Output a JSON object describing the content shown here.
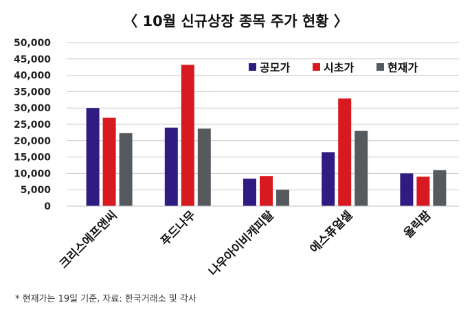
{
  "chart_data": {
    "type": "bar",
    "title": "〈 10월 신규상장 종목 주가 현황 〉",
    "categories": [
      "크리스에프앤씨",
      "푸드나무",
      "나우아이비캐피탈",
      "에스퓨얼셀",
      "올릭팜"
    ],
    "series": [
      {
        "name": "공모가",
        "color": "#2f1b82",
        "values": [
          30000,
          24000,
          8400,
          16500,
          10000
        ]
      },
      {
        "name": "시초가",
        "color": "#d71920",
        "values": [
          27000,
          43200,
          9200,
          32900,
          9000
        ]
      },
      {
        "name": "현재가",
        "color": "#555a5e",
        "values": [
          22300,
          23700,
          5000,
          23000,
          11000
        ]
      }
    ],
    "ylim": [
      0,
      50000
    ],
    "yticks": [
      "0",
      "5,000",
      "10,000",
      "15,000",
      "20,000",
      "25,000",
      "30,000",
      "35,000",
      "40,000",
      "45,000",
      "50,000"
    ],
    "ytick_values": [
      0,
      5000,
      10000,
      15000,
      20000,
      25000,
      30000,
      35000,
      40000,
      45000,
      50000
    ],
    "grid": true,
    "legend_position": "top-right",
    "footnote": "* 현재가는 19일 기준, 자료: 한국거래소 및 각사"
  }
}
